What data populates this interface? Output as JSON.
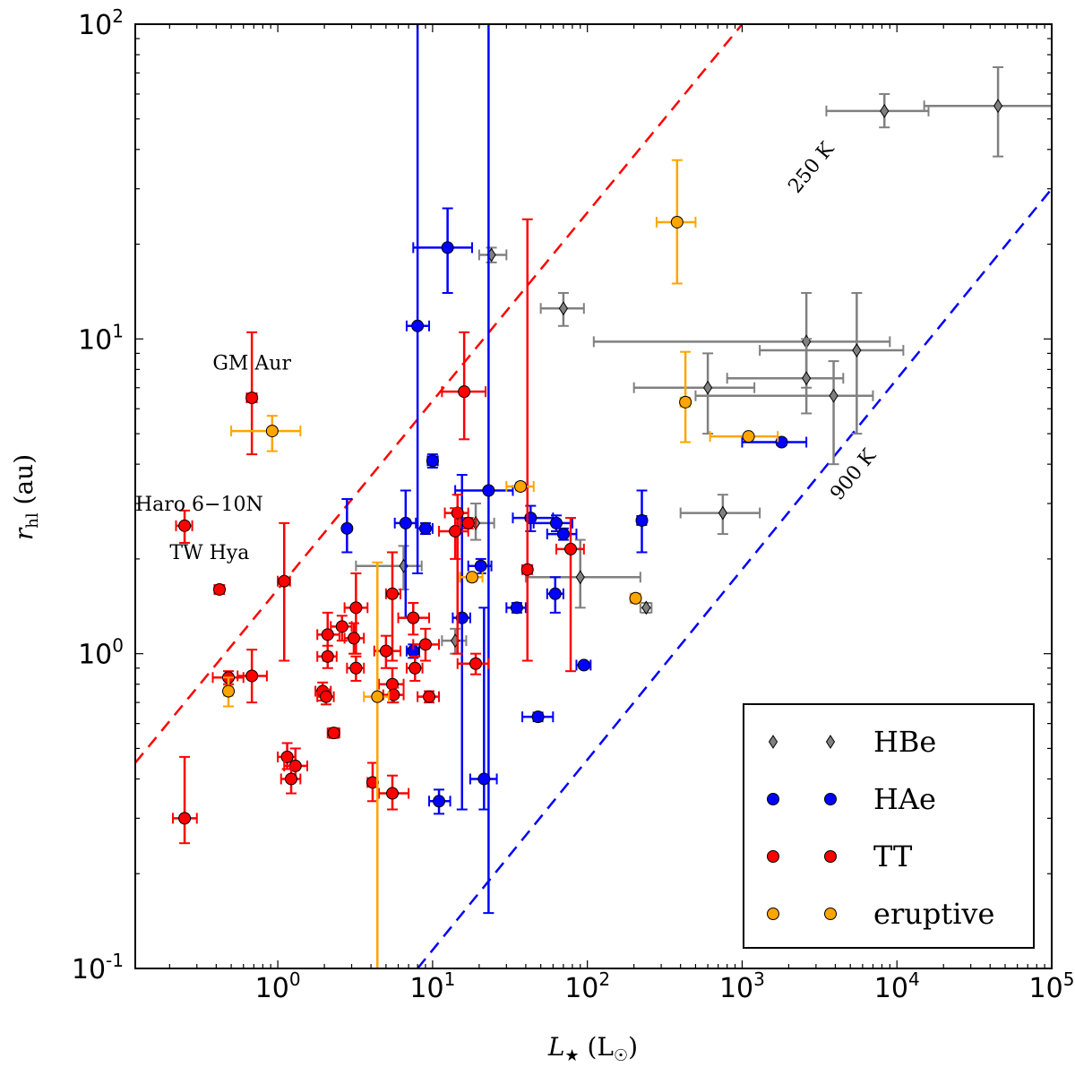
{
  "chart_data": {
    "type": "scatter",
    "title": "",
    "xlabel": "L★ (L☉)",
    "ylabel": "r_hl (au)",
    "xlabel_parts": {
      "main": "L",
      "sub": "★",
      "unit_open": " (L",
      "unit_sub": "☉",
      "unit_close": ")"
    },
    "ylabel_parts": {
      "main": "r",
      "sub": "hl",
      "unit": " (au)"
    },
    "xscale": "log",
    "yscale": "log",
    "xlim": [
      0.12,
      100000
    ],
    "ylim": [
      0.1,
      100
    ],
    "x_ticks": [
      {
        "value": 1,
        "base": "10",
        "exp": "0"
      },
      {
        "value": 10,
        "base": "10",
        "exp": "1"
      },
      {
        "value": 100,
        "base": "10",
        "exp": "2"
      },
      {
        "value": 1000,
        "base": "10",
        "exp": "3"
      },
      {
        "value": 10000,
        "base": "10",
        "exp": "4"
      },
      {
        "value": 100000,
        "base": "10",
        "exp": "5"
      }
    ],
    "y_ticks": [
      {
        "value": 0.1,
        "base": "10",
        "exp": "-1"
      },
      {
        "value": 1,
        "base": "10",
        "exp": "0"
      },
      {
        "value": 10,
        "base": "10",
        "exp": "1"
      },
      {
        "value": 100,
        "base": "10",
        "exp": "2"
      }
    ],
    "grid": false,
    "legend_position": "lower-right",
    "reference_lines": [
      {
        "label": "250 K",
        "color": "#ff0000",
        "points": [
          [
            0.12,
            0.45
          ],
          [
            1000,
            100
          ]
        ],
        "label_at": [
          3000,
          34
        ]
      },
      {
        "label": "900 K",
        "color": "#0000ff",
        "points": [
          [
            8,
            0.1
          ],
          [
            100000,
            30
          ]
        ],
        "label_at": [
          5600,
          3.6
        ]
      }
    ],
    "annotations": [
      {
        "text": "GM Aur",
        "x": 0.68,
        "y": 8.0
      },
      {
        "text": "Haro 6−10N",
        "x": 0.12,
        "y": 2.85
      },
      {
        "text": "TW Hya",
        "x": 0.2,
        "y": 2.0
      }
    ],
    "series": [
      {
        "name": "HBe",
        "color": "#808080",
        "marker": "diamond",
        "points": [
          {
            "x": 8300,
            "y": 53,
            "xlo": 3500,
            "xhi": 16000,
            "ylo": 47,
            "yhi": 60
          },
          {
            "x": 45000,
            "y": 55,
            "xlo": 15000,
            "xhi": 100000,
            "ylo": 38,
            "yhi": 73
          },
          {
            "x": 24,
            "y": 18.5,
            "xlo": 20,
            "xhi": 30,
            "ylo": 17.5,
            "yhi": 19.5
          },
          {
            "x": 70,
            "y": 12.5,
            "xlo": 50,
            "xhi": 95,
            "ylo": 11,
            "yhi": 14
          },
          {
            "x": 2600,
            "y": 9.8,
            "xlo": 110,
            "xhi": 9000,
            "ylo": 7,
            "yhi": 14
          },
          {
            "x": 5500,
            "y": 9.2,
            "xlo": 1300,
            "xhi": 11000,
            "ylo": 5,
            "yhi": 14
          },
          {
            "x": 2600,
            "y": 7.5,
            "xlo": 800,
            "xhi": 4500,
            "ylo": 5.8,
            "yhi": 10
          },
          {
            "x": 600,
            "y": 7.0,
            "xlo": 200,
            "xhi": 1200,
            "ylo": 5.0,
            "yhi": 9.0
          },
          {
            "x": 3900,
            "y": 6.6,
            "xlo": 500,
            "xhi": 7000,
            "ylo": 4.0,
            "yhi": 8.5
          },
          {
            "x": 750,
            "y": 2.8,
            "xlo": 400,
            "xhi": 1300,
            "ylo": 2.4,
            "yhi": 3.2
          },
          {
            "x": 19,
            "y": 2.6,
            "xlo": 15,
            "xhi": 25,
            "ylo": 2.3,
            "yhi": 3.0
          },
          {
            "x": 6.5,
            "y": 1.9,
            "xlo": 3.2,
            "xhi": 8.5,
            "ylo": 1.6,
            "yhi": 2.2
          },
          {
            "x": 90,
            "y": 1.75,
            "xlo": 40,
            "xhi": 220,
            "ylo": 1.4,
            "yhi": 2.3
          },
          {
            "x": 240,
            "y": 1.4,
            "xlo": 220,
            "xhi": 260,
            "ylo": 1.35,
            "yhi": 1.45
          },
          {
            "x": 14,
            "y": 1.1,
            "xlo": 11.5,
            "xhi": 16.5,
            "ylo": 1.0,
            "yhi": 1.2
          }
        ]
      },
      {
        "name": "HAe",
        "color": "#0000ff",
        "marker": "circle",
        "points": [
          {
            "x": 12.5,
            "y": 19.5,
            "xlo": 7.5,
            "xhi": 18,
            "ylo": 14,
            "yhi": 26
          },
          {
            "x": 8.0,
            "y": 11.0,
            "xlo": 6.8,
            "xhi": 9.5,
            "ylo": 1.8,
            "yhi": 100
          },
          {
            "x": 10,
            "y": 4.1,
            "xlo": 9.3,
            "xhi": 10.8,
            "ylo": 3.9,
            "yhi": 4.3
          },
          {
            "x": 23,
            "y": 3.3,
            "xlo": 14,
            "xhi": 33,
            "ylo": 0.15,
            "yhi": 100
          },
          {
            "x": 2.8,
            "y": 2.5,
            "xlo": 2.7,
            "xhi": 2.9,
            "ylo": 2.1,
            "yhi": 3.1
          },
          {
            "x": 6.7,
            "y": 2.6,
            "xlo": 5.7,
            "xhi": 7.8,
            "ylo": 1.3,
            "yhi": 3.3
          },
          {
            "x": 9.0,
            "y": 2.5,
            "xlo": 8.0,
            "xhi": 10,
            "ylo": 2.4,
            "yhi": 2.6
          },
          {
            "x": 43,
            "y": 2.7,
            "xlo": 33,
            "xhi": 60,
            "ylo": 2.45,
            "yhi": 2.95
          },
          {
            "x": 63,
            "y": 2.6,
            "xlo": 45,
            "xhi": 80,
            "ylo": 2.45,
            "yhi": 2.75
          },
          {
            "x": 70,
            "y": 2.4,
            "xlo": 55,
            "xhi": 85,
            "ylo": 2.3,
            "yhi": 2.5
          },
          {
            "x": 225,
            "y": 2.65,
            "xlo": 210,
            "xhi": 240,
            "ylo": 2.1,
            "yhi": 3.3
          },
          {
            "x": 20.5,
            "y": 1.9,
            "xlo": 17,
            "xhi": 24,
            "ylo": 1.8,
            "yhi": 2.0
          },
          {
            "x": 62,
            "y": 1.55,
            "xlo": 55,
            "xhi": 70,
            "ylo": 1.35,
            "yhi": 1.75
          },
          {
            "x": 35,
            "y": 1.4,
            "xlo": 30,
            "xhi": 40,
            "ylo": 1.35,
            "yhi": 1.45
          },
          {
            "x": 15.5,
            "y": 1.3,
            "xlo": 13.5,
            "xhi": 17.5,
            "ylo": 0.32,
            "yhi": 3.7
          },
          {
            "x": 7.5,
            "y": 1.02,
            "xlo": 6.8,
            "xhi": 8.2,
            "ylo": 0.97,
            "yhi": 1.07
          },
          {
            "x": 95,
            "y": 0.92,
            "xlo": 85,
            "xhi": 105,
            "ylo": 0.9,
            "yhi": 0.94
          },
          {
            "x": 48,
            "y": 0.63,
            "xlo": 38,
            "xhi": 60,
            "ylo": 0.61,
            "yhi": 0.65
          },
          {
            "x": 21.5,
            "y": 0.4,
            "xlo": 17.5,
            "xhi": 26,
            "ylo": 0.32,
            "yhi": 1.4
          },
          {
            "x": 11,
            "y": 0.34,
            "xlo": 9.5,
            "xhi": 13,
            "ylo": 0.31,
            "yhi": 0.37
          },
          {
            "x": 1800,
            "y": 4.7,
            "xlo": 1000,
            "xhi": 2600,
            "ylo": 4.6,
            "yhi": 4.8
          }
        ]
      },
      {
        "name": "TT",
        "color": "#ff0000",
        "marker": "circle",
        "points": [
          {
            "x": 0.68,
            "y": 6.5,
            "xlo": 0.63,
            "xhi": 0.73,
            "ylo": 4.3,
            "yhi": 10.5
          },
          {
            "x": 0.25,
            "y": 2.55,
            "xlo": 0.22,
            "xhi": 0.28,
            "ylo": 2.25,
            "yhi": 2.85
          },
          {
            "x": 0.42,
            "y": 1.6,
            "xlo": 0.39,
            "xhi": 0.45,
            "ylo": 1.55,
            "yhi": 1.65
          },
          {
            "x": 1.1,
            "y": 1.7,
            "xlo": 1.0,
            "xhi": 1.2,
            "ylo": 0.95,
            "yhi": 2.6
          },
          {
            "x": 16,
            "y": 6.8,
            "xlo": 11.5,
            "xhi": 22,
            "ylo": 4.8,
            "yhi": 10.5
          },
          {
            "x": 14.5,
            "y": 2.8,
            "xlo": 12,
            "xhi": 17,
            "ylo": 1.0,
            "yhi": 3.2
          },
          {
            "x": 14,
            "y": 2.45,
            "xlo": 11,
            "xhi": 17,
            "ylo": 2.0,
            "yhi": 2.9
          },
          {
            "x": 17,
            "y": 2.6,
            "xlo": 15,
            "xhi": 19,
            "ylo": 2.5,
            "yhi": 2.7
          },
          {
            "x": 41,
            "y": 1.85,
            "xlo": 38,
            "xhi": 44,
            "ylo": 0.95,
            "yhi": 24
          },
          {
            "x": 78,
            "y": 2.15,
            "xlo": 63,
            "xhi": 95,
            "ylo": 0.88,
            "yhi": 2.7
          },
          {
            "x": 5.5,
            "y": 1.55,
            "xlo": 5.0,
            "xhi": 6.2,
            "ylo": 0.95,
            "yhi": 2.1
          },
          {
            "x": 3.2,
            "y": 1.4,
            "xlo": 2.7,
            "xhi": 3.8,
            "ylo": 1.0,
            "yhi": 1.8
          },
          {
            "x": 2.6,
            "y": 1.22,
            "xlo": 2.2,
            "xhi": 3.0,
            "ylo": 1.1,
            "yhi": 1.32
          },
          {
            "x": 2.1,
            "y": 1.15,
            "xlo": 1.8,
            "xhi": 2.5,
            "ylo": 0.95,
            "yhi": 1.35
          },
          {
            "x": 3.1,
            "y": 1.12,
            "xlo": 2.7,
            "xhi": 3.6,
            "ylo": 1.0,
            "yhi": 1.25
          },
          {
            "x": 7.5,
            "y": 1.3,
            "xlo": 6.0,
            "xhi": 9.5,
            "ylo": 1.15,
            "yhi": 1.45
          },
          {
            "x": 5.0,
            "y": 1.02,
            "xlo": 4.2,
            "xhi": 6.2,
            "ylo": 0.9,
            "yhi": 1.14
          },
          {
            "x": 9.0,
            "y": 1.07,
            "xlo": 7.5,
            "xhi": 11,
            "ylo": 0.95,
            "yhi": 1.2
          },
          {
            "x": 2.1,
            "y": 0.98,
            "xlo": 1.8,
            "xhi": 2.4,
            "ylo": 0.9,
            "yhi": 1.06
          },
          {
            "x": 3.2,
            "y": 0.9,
            "xlo": 2.8,
            "xhi": 3.6,
            "ylo": 0.82,
            "yhi": 0.98
          },
          {
            "x": 7.7,
            "y": 0.9,
            "xlo": 6.8,
            "xhi": 8.6,
            "ylo": 0.82,
            "yhi": 0.98
          },
          {
            "x": 19,
            "y": 0.93,
            "xlo": 14.5,
            "xhi": 23,
            "ylo": 0.86,
            "yhi": 1.0
          },
          {
            "x": 0.48,
            "y": 0.84,
            "xlo": 0.38,
            "xhi": 0.6,
            "ylo": 0.8,
            "yhi": 0.88
          },
          {
            "x": 0.68,
            "y": 0.85,
            "xlo": 0.55,
            "xhi": 0.85,
            "ylo": 0.7,
            "yhi": 1.03
          },
          {
            "x": 1.95,
            "y": 0.76,
            "xlo": 1.75,
            "xhi": 2.2,
            "ylo": 0.71,
            "yhi": 0.81
          },
          {
            "x": 2.05,
            "y": 0.73,
            "xlo": 1.8,
            "xhi": 2.3,
            "ylo": 0.69,
            "yhi": 0.77
          },
          {
            "x": 5.5,
            "y": 0.8,
            "xlo": 4.5,
            "xhi": 6.5,
            "ylo": 0.7,
            "yhi": 0.9
          },
          {
            "x": 5.6,
            "y": 0.74,
            "xlo": 4.8,
            "xhi": 6.5,
            "ylo": 0.7,
            "yhi": 0.78
          },
          {
            "x": 9.5,
            "y": 0.73,
            "xlo": 8.0,
            "xhi": 11,
            "ylo": 0.7,
            "yhi": 0.76
          },
          {
            "x": 2.3,
            "y": 0.56,
            "xlo": 2.1,
            "xhi": 2.5,
            "ylo": 0.54,
            "yhi": 0.58
          },
          {
            "x": 1.15,
            "y": 0.47,
            "xlo": 1.0,
            "xhi": 1.3,
            "ylo": 0.43,
            "yhi": 0.52
          },
          {
            "x": 1.3,
            "y": 0.44,
            "xlo": 1.1,
            "xhi": 1.55,
            "ylo": 0.4,
            "yhi": 0.5
          },
          {
            "x": 1.22,
            "y": 0.4,
            "xlo": 1.05,
            "xhi": 1.4,
            "ylo": 0.36,
            "yhi": 0.44
          },
          {
            "x": 4.1,
            "y": 0.39,
            "xlo": 3.8,
            "xhi": 4.4,
            "ylo": 0.34,
            "yhi": 0.45
          },
          {
            "x": 5.5,
            "y": 0.36,
            "xlo": 4.5,
            "xhi": 7.0,
            "ylo": 0.32,
            "yhi": 0.41
          },
          {
            "x": 0.25,
            "y": 0.3,
            "xlo": 0.21,
            "xhi": 0.3,
            "ylo": 0.25,
            "yhi": 0.47
          }
        ]
      },
      {
        "name": "eruptive",
        "color": "#ffa500",
        "marker": "circle",
        "points": [
          {
            "x": 380,
            "y": 23.5,
            "xlo": 280,
            "xhi": 500,
            "ylo": 15,
            "yhi": 37
          },
          {
            "x": 0.92,
            "y": 5.1,
            "xlo": 0.5,
            "xhi": 1.4,
            "ylo": 4.4,
            "yhi": 5.7
          },
          {
            "x": 430,
            "y": 6.3,
            "xlo": 400,
            "xhi": 460,
            "ylo": 4.7,
            "yhi": 9.1
          },
          {
            "x": 1100,
            "y": 4.9,
            "xlo": 620,
            "xhi": 1700,
            "ylo": 4.8,
            "yhi": 5.0
          },
          {
            "x": 37,
            "y": 3.4,
            "xlo": 30,
            "xhi": 45,
            "ylo": 3.3,
            "yhi": 3.5
          },
          {
            "x": 18,
            "y": 1.75,
            "xlo": 15,
            "xhi": 21,
            "ylo": 1.7,
            "yhi": 1.8
          },
          {
            "x": 205,
            "y": 1.5,
            "xlo": 190,
            "xhi": 220,
            "ylo": 1.45,
            "yhi": 1.55
          },
          {
            "x": 0.48,
            "y": 0.76,
            "xlo": 0.45,
            "xhi": 0.51,
            "ylo": 0.68,
            "yhi": 0.84
          },
          {
            "x": 4.4,
            "y": 0.73,
            "xlo": 3.6,
            "xhi": 5.2,
            "ylo": 0.1,
            "yhi": 1.95
          }
        ]
      }
    ],
    "legend": [
      {
        "label": "HBe",
        "color": "#808080",
        "marker": "diamond"
      },
      {
        "label": "HAe",
        "color": "#0000ff",
        "marker": "circle"
      },
      {
        "label": "TT",
        "color": "#ff0000",
        "marker": "circle"
      },
      {
        "label": "eruptive",
        "color": "#ffa500",
        "marker": "circle"
      }
    ]
  }
}
